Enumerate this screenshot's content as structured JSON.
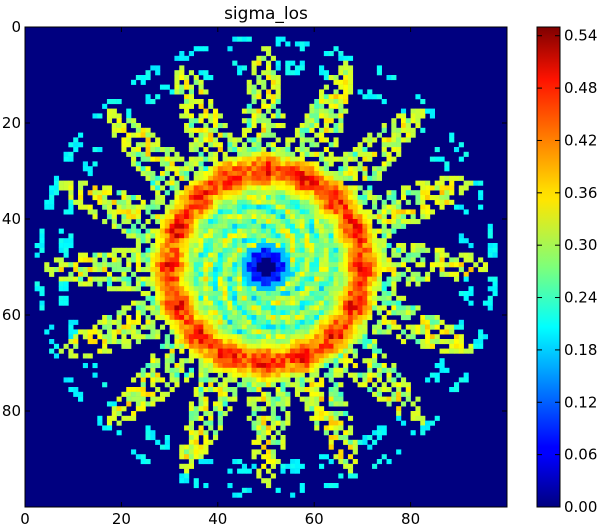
{
  "chart_data": {
    "type": "heatmap",
    "title": "sigma_los",
    "colormap": "jet",
    "grid": false,
    "image_size": [
      100,
      100
    ],
    "x_ticks": [
      0,
      20,
      40,
      60,
      80
    ],
    "y_ticks": [
      0,
      20,
      40,
      60,
      80
    ],
    "x_tick_labels": [
      "0",
      "20",
      "40",
      "60",
      "80"
    ],
    "y_tick_labels": [
      "0",
      "20",
      "40",
      "60",
      "80"
    ],
    "xlim": [
      0,
      100
    ],
    "ylim": [
      100,
      0
    ],
    "colorbar": {
      "range": [
        0.0,
        0.55
      ],
      "ticks": [
        0.0,
        0.06,
        0.12,
        0.18,
        0.24,
        0.3,
        0.36,
        0.42,
        0.48,
        0.54
      ],
      "tick_labels": [
        "0.00",
        "0.06",
        "0.12",
        "0.18",
        "0.24",
        "0.30",
        "0.36",
        "0.42",
        "0.48",
        "0.54"
      ]
    },
    "description_values": {
      "center": [
        50,
        50
      ],
      "center_hole_value": 0.0,
      "background_value": 0.0,
      "ring_peak_value": 0.45,
      "ring_peak_radius": 20,
      "star_points": 16
    }
  }
}
